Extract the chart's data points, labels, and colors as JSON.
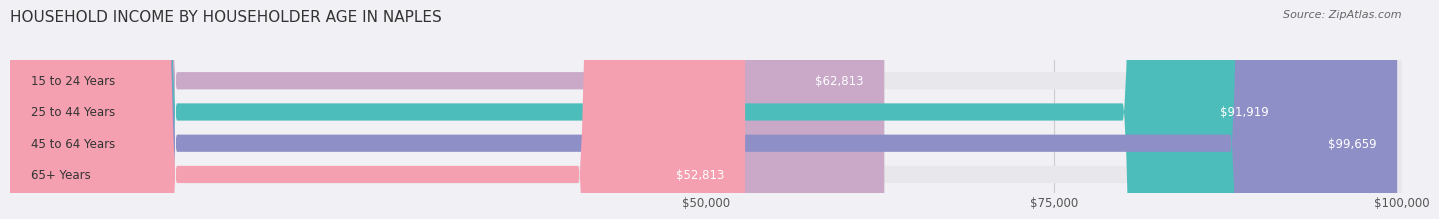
{
  "title": "HOUSEHOLD INCOME BY HOUSEHOLDER AGE IN NAPLES",
  "source": "Source: ZipAtlas.com",
  "categories": [
    "15 to 24 Years",
    "25 to 44 Years",
    "45 to 64 Years",
    "65+ Years"
  ],
  "values": [
    62813,
    91919,
    99659,
    52813
  ],
  "bar_colors": [
    "#c9a8c8",
    "#4dbdbb",
    "#8f8fc8",
    "#f4a0b0"
  ],
  "bar_bg_color": "#e8e8ec",
  "value_labels": [
    "$62,813",
    "$91,919",
    "$99,659",
    "$52,813"
  ],
  "xlim": [
    0,
    100000
  ],
  "xticks": [
    50000,
    75000,
    100000
  ],
  "xtick_labels": [
    "$50,000",
    "$75,000",
    "$100,000"
  ],
  "title_fontsize": 11,
  "label_fontsize": 8.5,
  "value_fontsize": 8.5,
  "source_fontsize": 8,
  "background_color": "#f0f0f5"
}
